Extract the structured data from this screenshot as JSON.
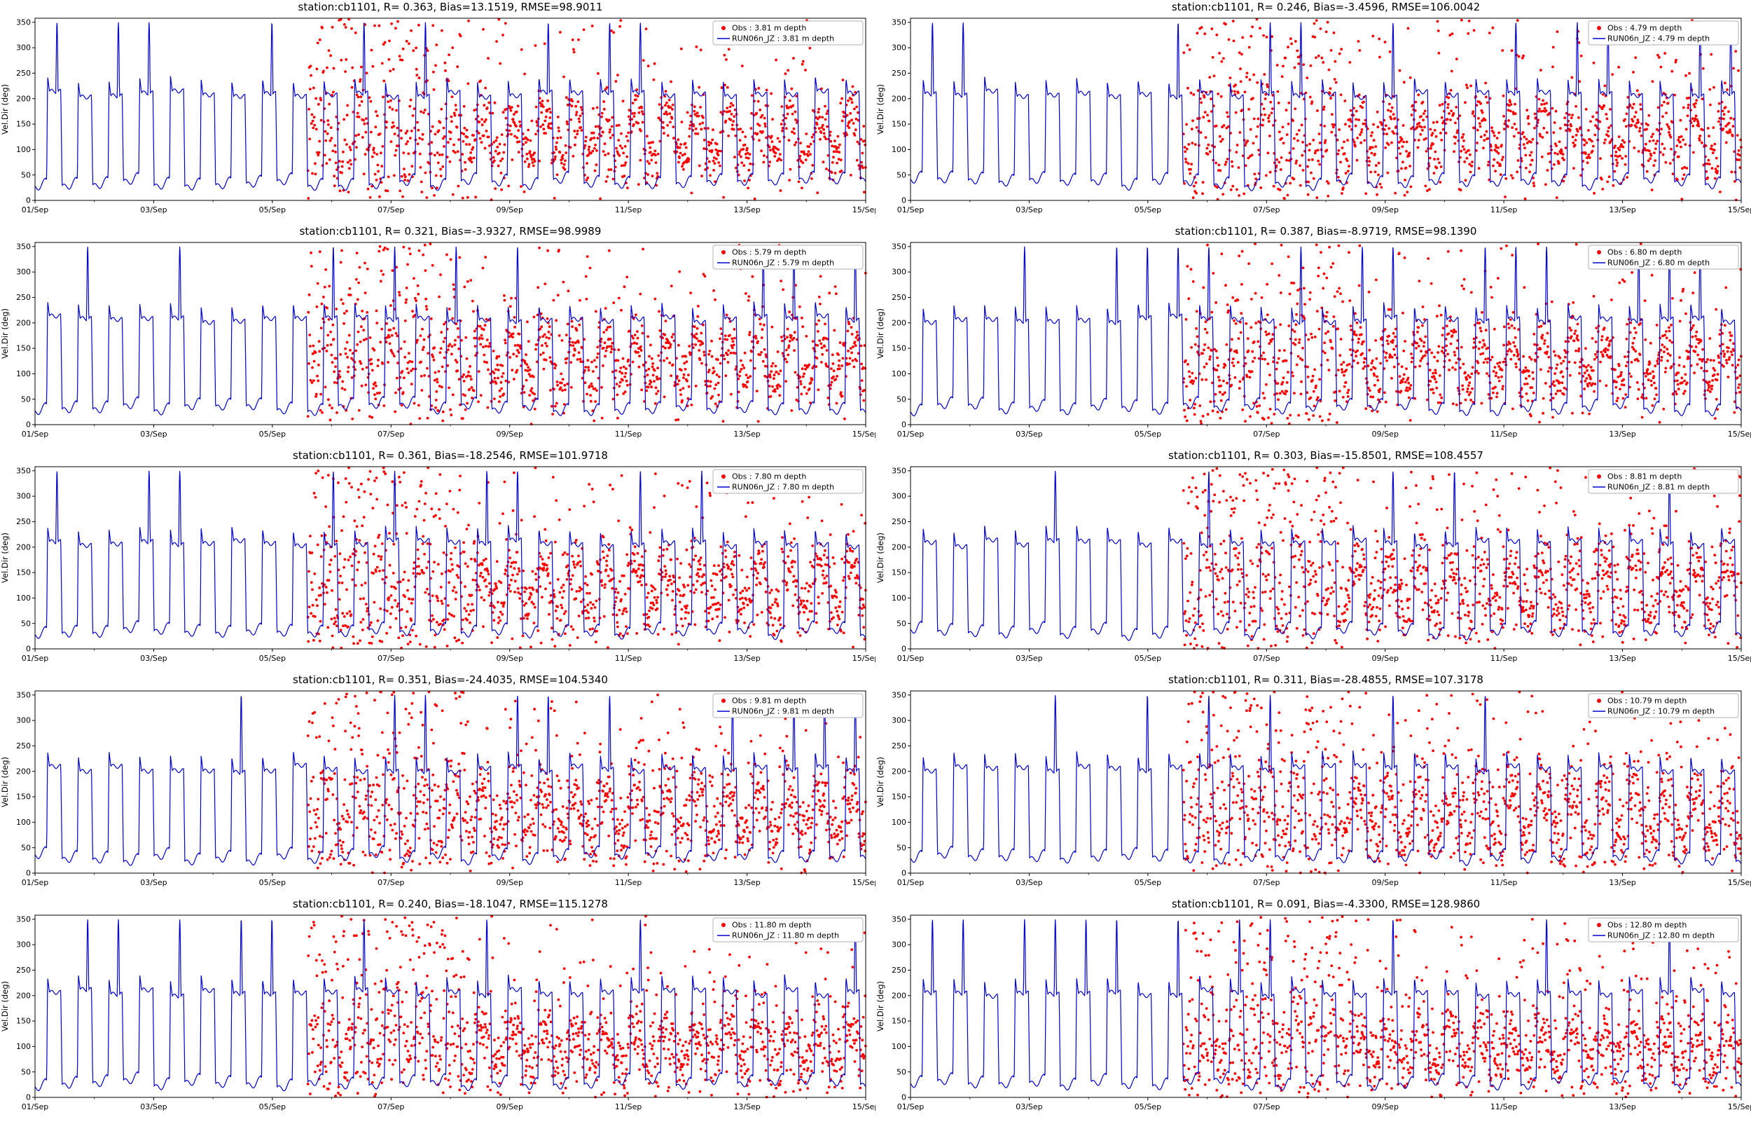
{
  "figure": {
    "background": "#ffffff",
    "obs_color": "#ff0000",
    "model_color": "#0000cd",
    "x_axis": {
      "span_days": 14,
      "tick_labels": [
        "01/Sep",
        "03/Sep",
        "05/Sep",
        "07/Sep",
        "09/Sep",
        "11/Sep",
        "13/Sep",
        "15/Sep"
      ]
    },
    "y_axis": {
      "label": "Vel.Dir (deg)",
      "tick_labels": [
        "0",
        "50",
        "100",
        "150",
        "200",
        "250",
        "300",
        "350"
      ],
      "max": 358
    }
  },
  "chart_data": [
    {
      "type": "line_scatter",
      "title": "station:cb1101, R= 0.363, Bias=13.1519, RMSE=98.9011",
      "stats": {
        "R": 0.363,
        "Bias": 13.1519,
        "RMSE": 98.9011
      },
      "depth_m": 3.81,
      "legend": {
        "obs": "Obs : 3.81 m depth",
        "model": "RUN06n_JZ : 3.81 m depth"
      },
      "x_range": [
        "01/Sep",
        "15/Sep"
      ],
      "y_range": [
        0,
        358
      ],
      "seed": 11,
      "obs_start_day": 4.6,
      "model_pattern": {
        "period_hours": 12.42,
        "high_deg": 208,
        "low_deg": 32,
        "spike_deg": 350,
        "spike_prob": 0.3
      },
      "obs_pattern": {
        "high_deg": 150,
        "low_deg": 80,
        "noise_sd": 26,
        "outlier_frac": 0.18,
        "chaotic_until_day": 7.3,
        "chaotic_outlier_frac": 0.5
      }
    },
    {
      "type": "line_scatter",
      "title": "station:cb1101, R= 0.246, Bias=-3.4596, RMSE=106.0042",
      "stats": {
        "R": 0.246,
        "Bias": -3.4596,
        "RMSE": 106.0042
      },
      "depth_m": 4.79,
      "legend": {
        "obs": "Obs : 4.79 m depth",
        "model": "RUN06n_JZ : 4.79 m depth"
      },
      "x_range": [
        "01/Sep",
        "15/Sep"
      ],
      "y_range": [
        0,
        358
      ],
      "seed": 22,
      "obs_start_day": 4.6,
      "model_pattern": {
        "period_hours": 12.42,
        "high_deg": 208,
        "low_deg": 32,
        "spike_deg": 350,
        "spike_prob": 0.26
      },
      "obs_pattern": {
        "high_deg": 152,
        "low_deg": 80,
        "noise_sd": 30,
        "outlier_frac": 0.22,
        "chaotic_until_day": 7.3,
        "chaotic_outlier_frac": 0.52
      }
    },
    {
      "type": "line_scatter",
      "title": "station:cb1101, R= 0.321, Bias=-3.9327, RMSE=98.9989",
      "stats": {
        "R": 0.321,
        "Bias": -3.9327,
        "RMSE": 98.9989
      },
      "depth_m": 5.79,
      "legend": {
        "obs": "Obs : 5.79 m depth",
        "model": "RUN06n_JZ : 5.79 m depth"
      },
      "x_range": [
        "01/Sep",
        "15/Sep"
      ],
      "y_range": [
        0,
        358
      ],
      "seed": 33,
      "obs_start_day": 4.6,
      "model_pattern": {
        "period_hours": 12.42,
        "high_deg": 206,
        "low_deg": 30,
        "spike_deg": 350,
        "spike_prob": 0.24
      },
      "obs_pattern": {
        "high_deg": 150,
        "low_deg": 78,
        "noise_sd": 27,
        "outlier_frac": 0.18,
        "chaotic_until_day": 7.3,
        "chaotic_outlier_frac": 0.5
      }
    },
    {
      "type": "line_scatter",
      "title": "station:cb1101, R= 0.387, Bias=-8.9719, RMSE=98.1390",
      "stats": {
        "R": 0.387,
        "Bias": -8.9719,
        "RMSE": 98.139
      },
      "depth_m": 6.8,
      "legend": {
        "obs": "Obs : 6.80 m depth",
        "model": "RUN06n_JZ : 6.80 m depth"
      },
      "x_range": [
        "01/Sep",
        "15/Sep"
      ],
      "y_range": [
        0,
        358
      ],
      "seed": 44,
      "obs_start_day": 4.6,
      "model_pattern": {
        "period_hours": 12.42,
        "high_deg": 206,
        "low_deg": 30,
        "spike_deg": 350,
        "spike_prob": 0.28
      },
      "obs_pattern": {
        "high_deg": 148,
        "low_deg": 75,
        "noise_sd": 27,
        "outlier_frac": 0.2,
        "chaotic_until_day": 7.3,
        "chaotic_outlier_frac": 0.5
      }
    },
    {
      "type": "line_scatter",
      "title": "station:cb1101, R= 0.361, Bias=-18.2546, RMSE=101.9718",
      "stats": {
        "R": 0.361,
        "Bias": -18.2546,
        "RMSE": 101.9718
      },
      "depth_m": 7.8,
      "legend": {
        "obs": "Obs : 7.80 m depth",
        "model": "RUN06n_JZ : 7.80 m depth"
      },
      "x_range": [
        "01/Sep",
        "15/Sep"
      ],
      "y_range": [
        0,
        358
      ],
      "seed": 55,
      "obs_start_day": 4.6,
      "model_pattern": {
        "period_hours": 12.42,
        "high_deg": 206,
        "low_deg": 30,
        "spike_deg": 350,
        "spike_prob": 0.3
      },
      "obs_pattern": {
        "high_deg": 150,
        "low_deg": 72,
        "noise_sd": 29,
        "outlier_frac": 0.22,
        "chaotic_until_day": 7.3,
        "chaotic_outlier_frac": 0.52
      }
    },
    {
      "type": "line_scatter",
      "title": "station:cb1101, R= 0.303, Bias=-15.8501, RMSE=108.4557",
      "stats": {
        "R": 0.303,
        "Bias": -15.8501,
        "RMSE": 108.4557
      },
      "depth_m": 8.81,
      "legend": {
        "obs": "Obs : 8.81 m depth",
        "model": "RUN06n_JZ : 8.81 m depth"
      },
      "x_range": [
        "01/Sep",
        "15/Sep"
      ],
      "y_range": [
        0,
        358
      ],
      "seed": 66,
      "obs_start_day": 4.6,
      "model_pattern": {
        "period_hours": 12.42,
        "high_deg": 206,
        "low_deg": 30,
        "spike_deg": 350,
        "spike_prob": 0.3
      },
      "obs_pattern": {
        "high_deg": 148,
        "low_deg": 70,
        "noise_sd": 30,
        "outlier_frac": 0.24,
        "chaotic_until_day": 7.3,
        "chaotic_outlier_frac": 0.52
      }
    },
    {
      "type": "line_scatter",
      "title": "station:cb1101, R= 0.351, Bias=-24.4035, RMSE=104.5340",
      "stats": {
        "R": 0.351,
        "Bias": -24.4035,
        "RMSE": 104.534
      },
      "depth_m": 9.81,
      "legend": {
        "obs": "Obs : 9.81 m depth",
        "model": "RUN06n_JZ : 9.81 m depth"
      },
      "x_range": [
        "01/Sep",
        "15/Sep"
      ],
      "y_range": [
        0,
        358
      ],
      "seed": 77,
      "obs_start_day": 4.6,
      "model_pattern": {
        "period_hours": 12.42,
        "high_deg": 204,
        "low_deg": 28,
        "spike_deg": 350,
        "spike_prob": 0.26
      },
      "obs_pattern": {
        "high_deg": 145,
        "low_deg": 68,
        "noise_sd": 30,
        "outlier_frac": 0.22,
        "chaotic_until_day": 7.3,
        "chaotic_outlier_frac": 0.5
      }
    },
    {
      "type": "line_scatter",
      "title": "station:cb1101, R= 0.311, Bias=-28.4855, RMSE=107.3178",
      "stats": {
        "R": 0.311,
        "Bias": -28.4855,
        "RMSE": 107.3178
      },
      "depth_m": 10.79,
      "legend": {
        "obs": "Obs : 10.79 m depth",
        "model": "RUN06n_JZ : 10.79 m depth"
      },
      "x_range": [
        "01/Sep",
        "15/Sep"
      ],
      "y_range": [
        0,
        358
      ],
      "seed": 88,
      "obs_start_day": 4.6,
      "model_pattern": {
        "period_hours": 12.42,
        "high_deg": 204,
        "low_deg": 28,
        "spike_deg": 350,
        "spike_prob": 0.3
      },
      "obs_pattern": {
        "high_deg": 140,
        "low_deg": 65,
        "noise_sd": 31,
        "outlier_frac": 0.22,
        "chaotic_until_day": 7.3,
        "chaotic_outlier_frac": 0.5
      }
    },
    {
      "type": "line_scatter",
      "title": "station:cb1101, R= 0.240, Bias=-18.1047, RMSE=115.1278",
      "stats": {
        "R": 0.24,
        "Bias": -18.1047,
        "RMSE": 115.1278
      },
      "depth_m": 11.8,
      "legend": {
        "obs": "Obs : 11.80 m depth",
        "model": "RUN06n_JZ : 11.80 m depth"
      },
      "x_range": [
        "01/Sep",
        "15/Sep"
      ],
      "y_range": [
        0,
        358
      ],
      "seed": 99,
      "obs_start_day": 4.6,
      "model_pattern": {
        "period_hours": 12.42,
        "high_deg": 204,
        "low_deg": 26,
        "spike_deg": 350,
        "spike_prob": 0.32
      },
      "obs_pattern": {
        "high_deg": 122,
        "low_deg": 60,
        "noise_sd": 30,
        "outlier_frac": 0.22,
        "chaotic_until_day": 7.3,
        "chaotic_outlier_frac": 0.5
      }
    },
    {
      "type": "line_scatter",
      "title": "station:cb1101, R= 0.091, Bias=-4.3300, RMSE=128.9860",
      "stats": {
        "R": 0.091,
        "Bias": -4.33,
        "RMSE": 128.986
      },
      "depth_m": 12.8,
      "legend": {
        "obs": "Obs : 12.80 m depth",
        "model": "RUN06n_JZ : 12.80 m depth"
      },
      "x_range": [
        "01/Sep",
        "15/Sep"
      ],
      "y_range": [
        0,
        358
      ],
      "seed": 110,
      "obs_start_day": 4.6,
      "model_pattern": {
        "period_hours": 12.42,
        "high_deg": 204,
        "low_deg": 26,
        "spike_deg": 350,
        "spike_prob": 0.38
      },
      "obs_pattern": {
        "high_deg": 115,
        "low_deg": 58,
        "noise_sd": 32,
        "outlier_frac": 0.26,
        "chaotic_until_day": 7.3,
        "chaotic_outlier_frac": 0.5
      }
    }
  ]
}
